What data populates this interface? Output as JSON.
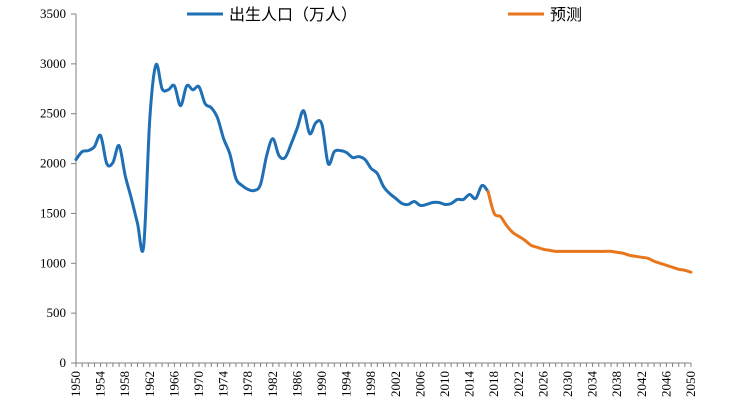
{
  "chart_data": {
    "type": "line",
    "title": "",
    "xlabel": "",
    "ylabel": "",
    "ylim": [
      0,
      3500
    ],
    "xlim": [
      1950,
      2050
    ],
    "y_ticks": [
      0,
      500,
      1000,
      1500,
      2000,
      2500,
      3000,
      3500
    ],
    "x_tick_labels": [
      "1950",
      "1954",
      "1958",
      "1962",
      "1966",
      "1970",
      "1974",
      "1978",
      "1982",
      "1986",
      "1990",
      "1994",
      "1998",
      "2002",
      "2006",
      "2010",
      "2014",
      "2018",
      "2022",
      "2026",
      "2030",
      "2034",
      "2038",
      "2042",
      "2046",
      "2050"
    ],
    "grid": false,
    "legend_position": "top",
    "series": [
      {
        "name": "出生人口（万人）",
        "color": "#1f6fb5",
        "x": [
          1950,
          1951,
          1952,
          1953,
          1954,
          1955,
          1956,
          1957,
          1958,
          1959,
          1960,
          1961,
          1962,
          1963,
          1964,
          1965,
          1966,
          1967,
          1968,
          1969,
          1970,
          1971,
          1972,
          1973,
          1974,
          1975,
          1976,
          1977,
          1978,
          1979,
          1980,
          1981,
          1982,
          1983,
          1984,
          1985,
          1986,
          1987,
          1988,
          1989,
          1990,
          1991,
          1992,
          1993,
          1994,
          1995,
          1996,
          1997,
          1998,
          1999,
          2000,
          2001,
          2002,
          2003,
          2004,
          2005,
          2006,
          2007,
          2008,
          2009,
          2010,
          2011,
          2012,
          2013,
          2014,
          2015,
          2016,
          2017
        ],
        "values": [
          2040,
          2120,
          2130,
          2170,
          2280,
          2000,
          2010,
          2180,
          1880,
          1650,
          1400,
          1170,
          2450,
          2990,
          2750,
          2740,
          2780,
          2580,
          2780,
          2740,
          2770,
          2600,
          2560,
          2460,
          2250,
          2100,
          1850,
          1780,
          1740,
          1730,
          1790,
          2080,
          2250,
          2080,
          2060,
          2200,
          2360,
          2530,
          2300,
          2410,
          2390,
          2000,
          2120,
          2130,
          2110,
          2060,
          2070,
          2040,
          1950,
          1900,
          1770,
          1700,
          1650,
          1600,
          1590,
          1620,
          1580,
          1590,
          1610,
          1610,
          1590,
          1600,
          1640,
          1640,
          1690,
          1650,
          1780,
          1720
        ]
      },
      {
        "name": "预测",
        "color": "#e8761c",
        "x": [
          2017,
          2018,
          2019,
          2020,
          2021,
          2022,
          2023,
          2024,
          2025,
          2026,
          2027,
          2028,
          2029,
          2030,
          2031,
          2032,
          2033,
          2034,
          2035,
          2036,
          2037,
          2038,
          2039,
          2040,
          2041,
          2042,
          2043,
          2044,
          2045,
          2046,
          2047,
          2048,
          2049,
          2050
        ],
        "values": [
          1720,
          1500,
          1470,
          1380,
          1310,
          1270,
          1230,
          1180,
          1160,
          1140,
          1130,
          1120,
          1120,
          1120,
          1120,
          1120,
          1120,
          1120,
          1120,
          1120,
          1120,
          1110,
          1100,
          1080,
          1070,
          1060,
          1050,
          1020,
          1000,
          980,
          960,
          940,
          930,
          910
        ]
      }
    ]
  }
}
